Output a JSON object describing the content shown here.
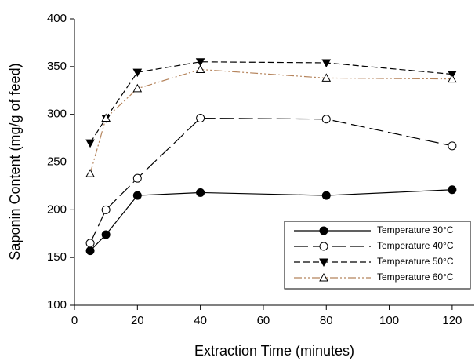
{
  "chart_data": {
    "type": "line",
    "x_label": "Extraction Time (minutes)",
    "y_label": "Saponin Content (mg/g of feed)",
    "x": [
      5,
      10,
      20,
      40,
      80,
      120
    ],
    "series": [
      {
        "name": "Temperature 30°C",
        "color": "#000000",
        "dash": "none",
        "marker": "circle",
        "marker_filled": true,
        "values": [
          157,
          174,
          215,
          218,
          215,
          221
        ]
      },
      {
        "name": "Temperature 40°C",
        "color": "#000000",
        "dash": "18 6",
        "marker": "circle",
        "marker_filled": false,
        "values": [
          165,
          200,
          233,
          296,
          295,
          267
        ]
      },
      {
        "name": "Temperature 50°C",
        "color": "#000000",
        "dash": "8 4",
        "marker": "triangle-down",
        "marker_filled": true,
        "values": [
          270,
          296,
          344,
          355,
          354,
          342
        ]
      },
      {
        "name": "Temperature 60°C",
        "color": "#b5845c",
        "dash": "10 3 2 3 2 3",
        "marker": "triangle-up",
        "marker_filled": false,
        "values": [
          238,
          296,
          327,
          347,
          338,
          337
        ]
      }
    ],
    "xlim": [
      0,
      127
    ],
    "xticks": [
      0,
      20,
      40,
      60,
      80,
      100,
      120
    ],
    "ylim": [
      100,
      400
    ],
    "yticks": [
      100,
      150,
      200,
      250,
      300,
      350,
      400
    ],
    "grid": false,
    "legend_position": "lower right"
  }
}
